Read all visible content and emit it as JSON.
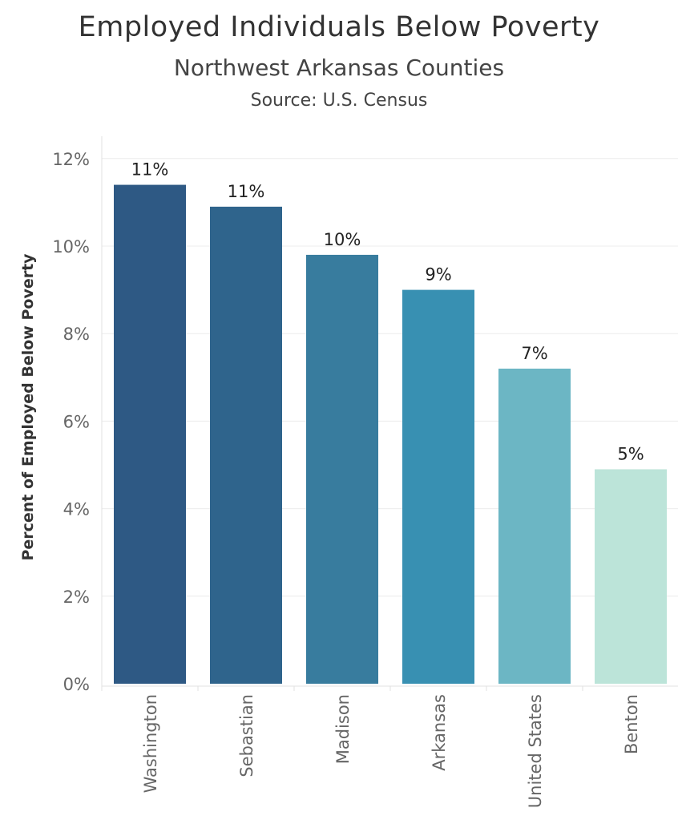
{
  "header": {
    "title": "Employed Individuals Below Poverty",
    "subtitle": "Northwest Arkansas Counties",
    "source": "Source: U.S. Census"
  },
  "chart_data": {
    "type": "bar",
    "categories": [
      "Washington",
      "Sebastian",
      "Madison",
      "Arkansas",
      "United States",
      "Benton"
    ],
    "values": [
      11.4,
      10.9,
      9.8,
      9.0,
      7.2,
      4.9
    ],
    "data_labels": [
      "11%",
      "11%",
      "10%",
      "9%",
      "7%",
      "5%"
    ],
    "colors": [
      "#2e5984",
      "#2f648c",
      "#387c9e",
      "#3890b2",
      "#6cb6c4",
      "#bce4d9"
    ],
    "title": "Employed Individuals Below Poverty",
    "subtitle": "Northwest Arkansas Counties",
    "xlabel": "",
    "ylabel": "Percent of Employed Below Poverty",
    "ylim": [
      0,
      12.5
    ],
    "yticks": [
      0,
      2,
      4,
      6,
      8,
      10,
      12
    ],
    "ytick_labels": [
      "0%",
      "2%",
      "4%",
      "6%",
      "8%",
      "10%",
      "12%"
    ],
    "grid": true,
    "legend": "none"
  }
}
